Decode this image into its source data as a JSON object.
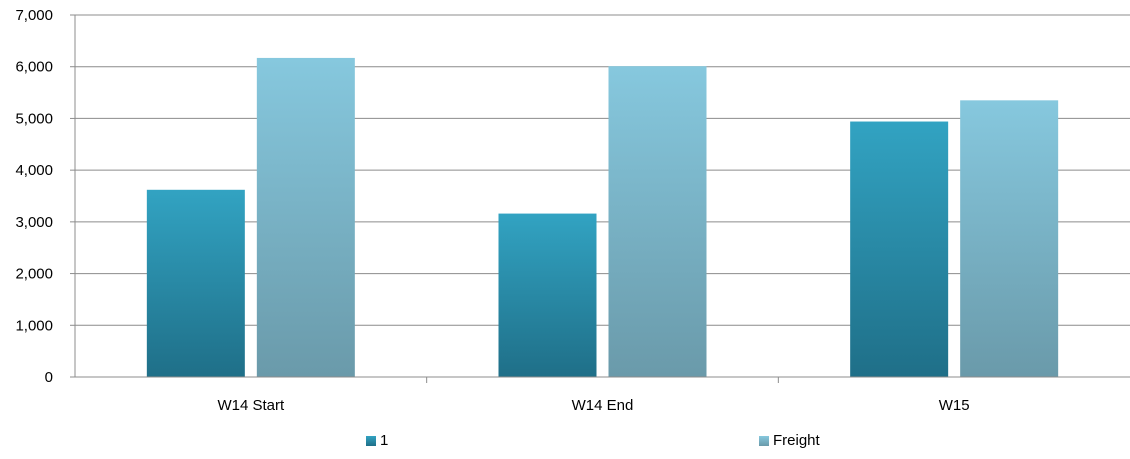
{
  "chart_data": {
    "type": "bar",
    "categories": [
      "W14 Start",
      "W14 End",
      "W15"
    ],
    "series": [
      {
        "name": "1",
        "values": [
          3620,
          3160,
          4940
        ],
        "color_top": "#32a3c2",
        "color_bottom": "#1f6f88"
      },
      {
        "name": "Freight",
        "values": [
          6170,
          6010,
          5350
        ],
        "color_top": "#86c8de",
        "color_bottom": "#6a9aaa"
      }
    ],
    "ylim": [
      0,
      7000
    ],
    "yticks": [
      0,
      1000,
      2000,
      3000,
      4000,
      5000,
      6000,
      7000
    ],
    "ytick_labels": [
      "0",
      "1,000",
      "2,000",
      "3,000",
      "4,000",
      "5,000",
      "6,000",
      "7,000"
    ],
    "grid": true,
    "legend_position": "bottom",
    "title": "",
    "xlabel": "",
    "ylabel": ""
  },
  "legend": {
    "series1_label": "1",
    "series2_label": "Freight"
  }
}
